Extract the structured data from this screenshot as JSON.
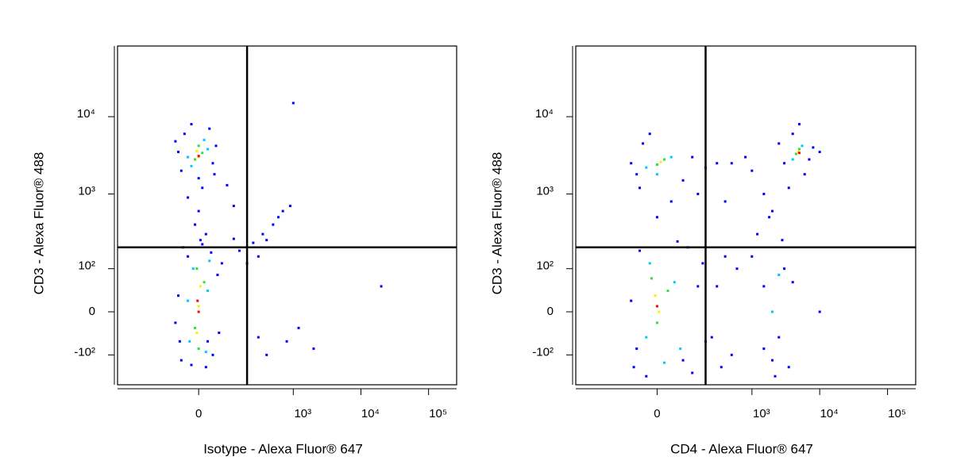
{
  "chart_data": [
    {
      "type": "scatter",
      "x_label": "Isotype - Alexa Fluor® 647",
      "y_label": "CD3 - Alexa Fluor® 488",
      "xscale": "biexponential",
      "yscale": "biexponential",
      "xlim": [
        -630,
        260000
      ],
      "ylim": [
        -260,
        82000
      ],
      "xticks": [
        0,
        {
          "value": 1000,
          "label": "10³"
        },
        {
          "value": 10000,
          "label": "10⁴"
        },
        {
          "value": 100000,
          "label": "10⁵"
        }
      ],
      "yticks": [
        {
          "value": -100,
          "label": "-10²"
        },
        0,
        {
          "value": 100,
          "label": "10²"
        },
        {
          "value": 1000,
          "label": "10³"
        },
        {
          "value": 10000,
          "label": "10⁴"
        }
      ],
      "quadrant_gate": {
        "x": 200,
        "y": 200
      },
      "series": [
        {
          "color": "#0000ff",
          "x": [
            -50,
            40,
            -30,
            55,
            -60,
            20,
            60,
            -45,
            10,
            -20,
            35,
            -55,
            70,
            -70,
            25,
            -50,
            40,
            -40,
            30,
            -60,
            50,
            0,
            -20,
            45,
            -70,
            0,
            -10,
            20,
            -30,
            10,
            5,
            150,
            250,
            350,
            500,
            700,
            900,
            300,
            200,
            400,
            600,
            120,
            1000,
            1200,
            800,
            300,
            2000,
            20000,
            400,
            120,
            90
          ],
          "y": [
            -120,
            -100,
            150,
            80,
            30,
            -150,
            -40,
            200,
            220,
            -140,
            170,
            -60,
            120,
            -20,
            -60,
            2000,
            2500,
            6000,
            7000,
            3500,
            4200,
            1600,
            8000,
            1800,
            4800,
            600,
            400,
            300,
            900,
            1200,
            250,
            180,
            230,
            300,
            400,
            600,
            700,
            150,
            120,
            250,
            500,
            260,
            15000,
            -30,
            -60,
            -50,
            -80,
            50,
            -100,
            700,
            1300
          ]
        },
        {
          "color": "#00c8ff",
          "x": [
            -25,
            25,
            -15,
            20,
            -30,
            30,
            -20,
            25,
            -30,
            15
          ],
          "y": [
            -60,
            40,
            100,
            -90,
            20,
            130,
            2300,
            3800,
            3000,
            5000
          ]
        },
        {
          "color": "#30e030",
          "x": [
            -10,
            15,
            0,
            -5,
            -10,
            10,
            0
          ],
          "y": [
            -30,
            60,
            -80,
            100,
            2800,
            3400,
            4200
          ]
        },
        {
          "color": "#ffee00",
          "x": [
            0,
            -5,
            5,
            0,
            -5
          ],
          "y": [
            10,
            -40,
            50,
            3000,
            3600
          ]
        },
        {
          "color": "#ff0000",
          "x": [
            0,
            -3,
            0
          ],
          "y": [
            0,
            20,
            3100
          ]
        }
      ]
    },
    {
      "type": "scatter",
      "x_label": "CD4 - Alexa Fluor® 647",
      "y_label": "CD3 - Alexa Fluor® 488",
      "xscale": "biexponential",
      "yscale": "biexponential",
      "xlim": [
        -630,
        260000
      ],
      "ylim": [
        -260,
        82000
      ],
      "xticks": [
        0,
        {
          "value": 1000,
          "label": "10³"
        },
        {
          "value": 10000,
          "label": "10⁴"
        },
        {
          "value": 100000,
          "label": "10⁵"
        }
      ],
      "yticks": [
        {
          "value": -100,
          "label": "-10²"
        },
        0,
        {
          "value": 100,
          "label": "10²"
        },
        {
          "value": 1000,
          "label": "10³"
        },
        {
          "value": 10000,
          "label": "10⁴"
        }
      ],
      "quadrant_gate": {
        "x": 200,
        "y": 200
      },
      "series": [
        {
          "color": "#0000ff",
          "x": [
            -70,
            80,
            -50,
            150,
            -80,
            200,
            100,
            -30,
            60,
            180,
            -60,
            120,
            300,
            500,
            400,
            250,
            600,
            350,
            1500,
            2500,
            3000,
            2000,
            1200,
            1800,
            4000,
            2200,
            1000,
            1500,
            3500,
            2800,
            10000,
            -60,
            120,
            -40,
            80,
            -80,
            200,
            -20,
            300,
            40,
            0,
            -50,
            150,
            3000,
            8000,
            4000,
            6000,
            2500,
            5000,
            7000,
            3500,
            10000,
            500,
            800,
            1500,
            2000,
            1000,
            400
          ],
          "y": [
            -150,
            -120,
            180,
            50,
            20,
            -60,
            200,
            -200,
            240,
            120,
            -80,
            -180,
            50,
            -100,
            150,
            -50,
            100,
            -150,
            50,
            -50,
            100,
            -120,
            300,
            500,
            60,
            -200,
            150,
            -80,
            -150,
            250,
            0,
            1800,
            3000,
            4500,
            1500,
            2500,
            2200,
            6000,
            2500,
            800,
            500,
            1200,
            1000,
            2500,
            4000,
            6000,
            1800,
            4500,
            8000,
            2800,
            1200,
            3500,
            2500,
            3000,
            1000,
            600,
            2000,
            800
          ]
        },
        {
          "color": "#00c8ff",
          "x": [
            -30,
            50,
            -20,
            70,
            20,
            -30,
            40,
            0,
            4000,
            5500,
            2000,
            2500
          ],
          "y": [
            -50,
            60,
            120,
            -80,
            -130,
            2200,
            3000,
            1800,
            2800,
            4200,
            0,
            80
          ]
        },
        {
          "color": "#30e030",
          "x": [
            0,
            30,
            -15,
            0,
            20,
            4500,
            5000
          ],
          "y": [
            -20,
            40,
            70,
            2400,
            2800,
            3300,
            3800
          ]
        },
        {
          "color": "#ffee00",
          "x": [
            5,
            -5,
            10,
            4800
          ],
          "y": [
            0,
            30,
            2600,
            3500
          ]
        },
        {
          "color": "#ff0000",
          "x": [
            0,
            5000
          ],
          "y": [
            10,
            3400
          ]
        }
      ]
    }
  ]
}
